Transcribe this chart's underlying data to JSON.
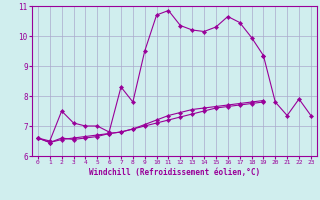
{
  "xlabel": "Windchill (Refroidissement éolien,°C)",
  "bg_color": "#d0eeee",
  "grid_color": "#aaaacc",
  "line_color": "#990099",
  "xlim": [
    -0.5,
    23.5
  ],
  "ylim": [
    6,
    11
  ],
  "yticks": [
    6,
    7,
    8,
    9,
    10,
    11
  ],
  "xticks": [
    0,
    1,
    2,
    3,
    4,
    5,
    6,
    7,
    8,
    9,
    10,
    11,
    12,
    13,
    14,
    15,
    16,
    17,
    18,
    19,
    20,
    21,
    22,
    23
  ],
  "series": [
    [
      6.6,
      6.5,
      7.5,
      7.1,
      7.0,
      7.0,
      6.8,
      8.3,
      7.8,
      9.5,
      10.7,
      10.85,
      10.35,
      10.2,
      10.15,
      10.3,
      10.65,
      10.45,
      9.95,
      9.35,
      null,
      null,
      null,
      null
    ],
    [
      6.6,
      6.45,
      6.6,
      6.55,
      6.6,
      6.65,
      6.75,
      6.8,
      6.9,
      7.0,
      7.1,
      7.2,
      7.3,
      7.4,
      7.5,
      7.6,
      7.65,
      7.7,
      7.75,
      7.8,
      null,
      null,
      null,
      null
    ],
    [
      6.6,
      6.45,
      6.55,
      6.6,
      6.65,
      6.7,
      6.75,
      6.8,
      6.9,
      7.05,
      7.2,
      7.35,
      7.45,
      7.55,
      7.6,
      7.65,
      7.7,
      7.75,
      7.8,
      7.85,
      null,
      null,
      null,
      null
    ],
    [
      null,
      null,
      null,
      null,
      null,
      null,
      null,
      null,
      null,
      null,
      null,
      null,
      null,
      null,
      null,
      null,
      null,
      null,
      null,
      9.35,
      7.8,
      7.35,
      7.9,
      7.35
    ]
  ]
}
